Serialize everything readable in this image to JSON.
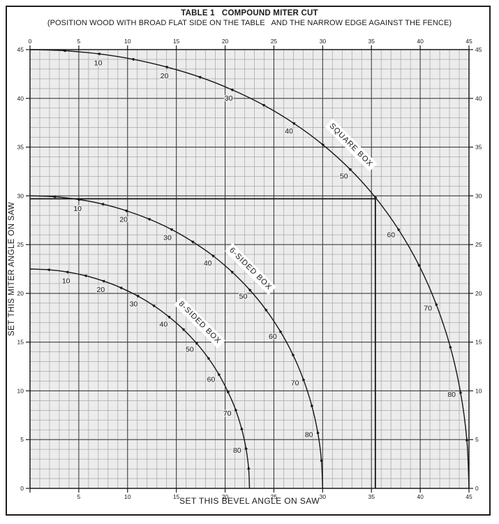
{
  "page": {
    "title": "TABLE 1   COMPOUND MITER CUT",
    "subtitle": "(POSITION WOOD WITH BROAD FLAT SIDE ON THE TABLE   AND THE NARROW EDGE AGAINST THE FENCE)"
  },
  "chart_data": {
    "type": "line",
    "title": "TABLE 1   COMPOUND MITER CUT",
    "subtitle": "(POSITION WOOD WITH BROAD FLAT SIDE ON THE TABLE   AND THE NARROW EDGE AGAINST THE FENCE)",
    "xlabel": "SET THIS BEVEL ANGLE ON SAW",
    "ylabel": "SET THIS MITER ANGLE ON SAW",
    "xlim": [
      0,
      45
    ],
    "ylim": [
      0,
      45
    ],
    "x_ticks": [
      0,
      5,
      10,
      15,
      20,
      25,
      30,
      35,
      40,
      45
    ],
    "y_ticks": [
      0,
      5,
      10,
      15,
      20,
      25,
      30,
      35,
      40,
      45
    ],
    "grid": {
      "minor_step": 1,
      "major_step": 5,
      "minor_color": "#a8a8a8",
      "major_color": "#3d3d3d",
      "plot_bg": "#ececec"
    },
    "example_lines": {
      "bevel": 35.4,
      "miter": 29.7
    },
    "series": [
      {
        "name": "SQUARE BOX",
        "sides": 4,
        "name_label": {
          "x": 32.9,
          "y": 35.2,
          "rotation": 45
        },
        "points": [
          {
            "slope": 0,
            "bevel": 0.0,
            "miter": 45.0
          },
          {
            "slope": 5,
            "bevel": 3.53,
            "miter": 44.89
          },
          {
            "slope": 10,
            "bevel": 7.07,
            "miter": 44.56
          },
          {
            "slope": 15,
            "bevel": 10.55,
            "miter": 44.01
          },
          {
            "slope": 20,
            "bevel": 13.99,
            "miter": 43.22
          },
          {
            "slope": 25,
            "bevel": 17.39,
            "miter": 42.19
          },
          {
            "slope": 30,
            "bevel": 20.7,
            "miter": 40.89
          },
          {
            "slope": 35,
            "bevel": 23.93,
            "miter": 39.32
          },
          {
            "slope": 40,
            "bevel": 27.03,
            "miter": 37.45
          },
          {
            "slope": 45,
            "bevel": 30.0,
            "miter": 35.26
          },
          {
            "slope": 50,
            "bevel": 32.8,
            "miter": 32.73
          },
          {
            "slope": 55,
            "bevel": 35.4,
            "miter": 29.84
          },
          {
            "slope": 60,
            "bevel": 37.76,
            "miter": 26.57
          },
          {
            "slope": 65,
            "bevel": 39.86,
            "miter": 22.91
          },
          {
            "slope": 70,
            "bevel": 41.64,
            "miter": 18.88
          },
          {
            "slope": 75,
            "bevel": 43.08,
            "miter": 14.51
          },
          {
            "slope": 80,
            "bevel": 44.13,
            "miter": 9.85
          },
          {
            "slope": 85,
            "bevel": 44.78,
            "miter": 4.98
          },
          {
            "slope": 90,
            "bevel": 45.0,
            "miter": 0.0
          }
        ]
      },
      {
        "name": "6-SIDED BOX",
        "sides": 6,
        "name_label": {
          "x": 22.6,
          "y": 22.5,
          "rotation": 45
        },
        "points": [
          {
            "slope": 0,
            "bevel": 0.0,
            "miter": 30.0
          },
          {
            "slope": 5,
            "bevel": 2.5,
            "miter": 29.91
          },
          {
            "slope": 10,
            "bevel": 4.98,
            "miter": 29.63
          },
          {
            "slope": 15,
            "bevel": 7.44,
            "miter": 29.16
          },
          {
            "slope": 20,
            "bevel": 9.85,
            "miter": 28.48
          },
          {
            "slope": 25,
            "bevel": 12.2,
            "miter": 27.62
          },
          {
            "slope": 30,
            "bevel": 14.48,
            "miter": 26.57
          },
          {
            "slope": 35,
            "bevel": 16.66,
            "miter": 25.3
          },
          {
            "slope": 40,
            "bevel": 18.75,
            "miter": 23.86
          },
          {
            "slope": 45,
            "bevel": 20.7,
            "miter": 22.21
          },
          {
            "slope": 50,
            "bevel": 22.52,
            "miter": 20.36
          },
          {
            "slope": 55,
            "bevel": 24.18,
            "miter": 18.32
          },
          {
            "slope": 60,
            "bevel": 25.66,
            "miter": 16.1
          },
          {
            "slope": 65,
            "bevel": 26.95,
            "miter": 13.71
          },
          {
            "slope": 70,
            "bevel": 28.02,
            "miter": 11.17
          },
          {
            "slope": 75,
            "bevel": 28.88,
            "miter": 8.5
          },
          {
            "slope": 80,
            "bevel": 29.5,
            "miter": 5.73
          },
          {
            "slope": 85,
            "bevel": 29.87,
            "miter": 2.88
          },
          {
            "slope": 90,
            "bevel": 30.0,
            "miter": 0.0
          }
        ]
      },
      {
        "name": "8-SIDED BOX",
        "sides": 8,
        "name_label": {
          "x": 17.4,
          "y": 17.0,
          "rotation": 45
        },
        "points": [
          {
            "slope": 0,
            "bevel": 0.0,
            "miter": 22.5
          },
          {
            "slope": 5,
            "bevel": 1.91,
            "miter": 22.42
          },
          {
            "slope": 10,
            "bevel": 3.81,
            "miter": 22.19
          },
          {
            "slope": 15,
            "bevel": 5.69,
            "miter": 21.81
          },
          {
            "slope": 20,
            "bevel": 7.52,
            "miter": 21.27
          },
          {
            "slope": 25,
            "bevel": 9.31,
            "miter": 20.58
          },
          {
            "slope": 30,
            "bevel": 11.03,
            "miter": 19.74
          },
          {
            "slope": 35,
            "bevel": 12.67,
            "miter": 18.75
          },
          {
            "slope": 40,
            "bevel": 14.24,
            "miter": 17.6
          },
          {
            "slope": 45,
            "bevel": 15.71,
            "miter": 16.32
          },
          {
            "slope": 50,
            "bevel": 17.05,
            "miter": 14.91
          },
          {
            "slope": 55,
            "bevel": 18.28,
            "miter": 13.36
          },
          {
            "slope": 60,
            "bevel": 19.35,
            "miter": 11.7
          },
          {
            "slope": 65,
            "bevel": 20.28,
            "miter": 9.92
          },
          {
            "slope": 70,
            "bevel": 21.08,
            "miter": 8.06
          },
          {
            "slope": 75,
            "bevel": 21.69,
            "miter": 6.12
          },
          {
            "slope": 80,
            "bevel": 22.14,
            "miter": 4.11
          },
          {
            "slope": 85,
            "bevel": 22.41,
            "miter": 2.07
          },
          {
            "slope": 90,
            "bevel": 22.5,
            "miter": 0.0
          }
        ]
      }
    ]
  }
}
